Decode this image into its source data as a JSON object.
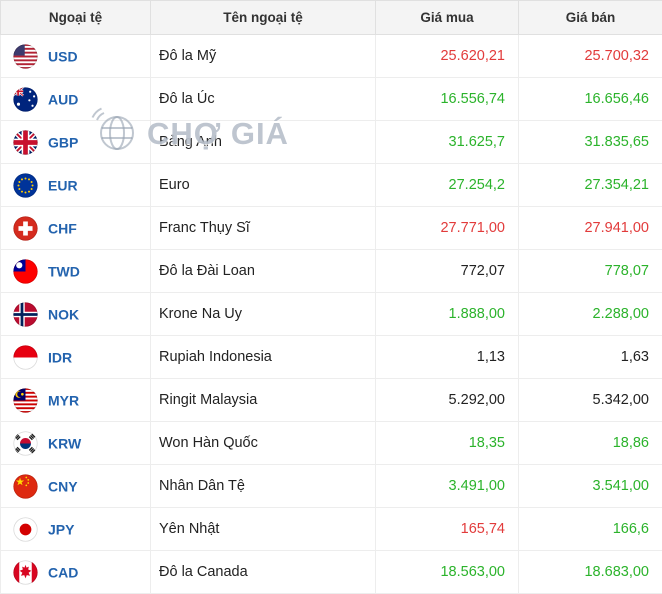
{
  "colors": {
    "red": "#e23b3b",
    "green": "#2bb32b",
    "black": "#222222",
    "code_blue": "#2363ae",
    "header_bg": "#f4f4f4"
  },
  "watermark": {
    "text": "CHỢ GIÁ",
    "icon": "globe-icon"
  },
  "table": {
    "headers": [
      "Ngoại tệ",
      "Tên ngoại tệ",
      "Giá mua",
      "Giá bán"
    ],
    "rows": [
      {
        "code": "USD",
        "flag": "usd-flag-icon",
        "name": "Đô la Mỹ",
        "buy": "25.620,21",
        "buy_color": "red",
        "sell": "25.700,32",
        "sell_color": "red"
      },
      {
        "code": "AUD",
        "flag": "aud-flag-icon",
        "name": "Đô la Úc",
        "buy": "16.556,74",
        "buy_color": "green",
        "sell": "16.656,46",
        "sell_color": "green"
      },
      {
        "code": "GBP",
        "flag": "gbp-flag-icon",
        "name": "Bảng Anh",
        "buy": "31.625,7",
        "buy_color": "green",
        "sell": "31.835,65",
        "sell_color": "green"
      },
      {
        "code": "EUR",
        "flag": "eur-flag-icon",
        "name": "Euro",
        "buy": "27.254,2",
        "buy_color": "green",
        "sell": "27.354,21",
        "sell_color": "green"
      },
      {
        "code": "CHF",
        "flag": "chf-flag-icon",
        "name": "Franc Thụy Sĩ",
        "buy": "27.771,00",
        "buy_color": "red",
        "sell": "27.941,00",
        "sell_color": "red"
      },
      {
        "code": "TWD",
        "flag": "twd-flag-icon",
        "name": "Đô la Đài Loan",
        "buy": "772,07",
        "buy_color": "black",
        "sell": "778,07",
        "sell_color": "green"
      },
      {
        "code": "NOK",
        "flag": "nok-flag-icon",
        "name": "Krone Na Uy",
        "buy": "1.888,00",
        "buy_color": "green",
        "sell": "2.288,00",
        "sell_color": "green"
      },
      {
        "code": "IDR",
        "flag": "idr-flag-icon",
        "name": "Rupiah Indonesia",
        "buy": "1,13",
        "buy_color": "black",
        "sell": "1,63",
        "sell_color": "black"
      },
      {
        "code": "MYR",
        "flag": "myr-flag-icon",
        "name": "Ringit Malaysia",
        "buy": "5.292,00",
        "buy_color": "black",
        "sell": "5.342,00",
        "sell_color": "black"
      },
      {
        "code": "KRW",
        "flag": "krw-flag-icon",
        "name": "Won Hàn Quốc",
        "buy": "18,35",
        "buy_color": "green",
        "sell": "18,86",
        "sell_color": "green"
      },
      {
        "code": "CNY",
        "flag": "cny-flag-icon",
        "name": "Nhân Dân Tệ",
        "buy": "3.491,00",
        "buy_color": "green",
        "sell": "3.541,00",
        "sell_color": "green"
      },
      {
        "code": "JPY",
        "flag": "jpy-flag-icon",
        "name": "Yên Nhật",
        "buy": "165,74",
        "buy_color": "red",
        "sell": "166,6",
        "sell_color": "green"
      },
      {
        "code": "CAD",
        "flag": "cad-flag-icon",
        "name": "Đô la Canada",
        "buy": "18.563,00",
        "buy_color": "green",
        "sell": "18.683,00",
        "sell_color": "green"
      }
    ]
  }
}
